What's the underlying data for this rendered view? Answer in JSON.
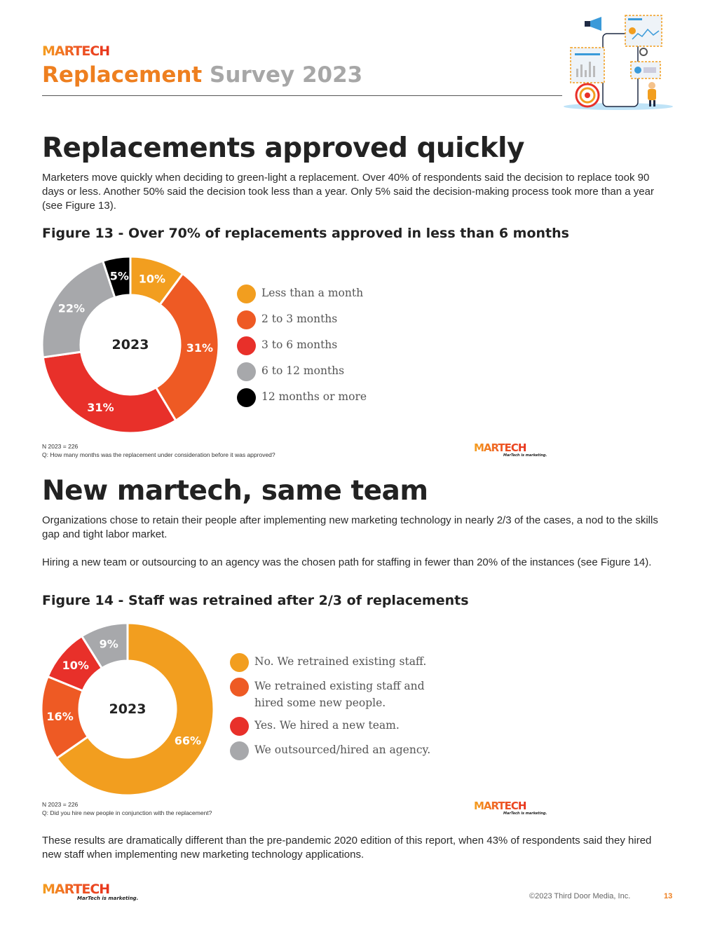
{
  "header": {
    "logo": "MARTECH",
    "title_part1": "Replacement",
    "title_part2": "Survey 2023"
  },
  "section1": {
    "heading": "Replacements approved quickly",
    "paragraph": "Marketers move quickly when deciding to green-light a replacement. Over 40% of respondents said the decision to replace took 90 days or less. Another 50% said the decision took less than a year. Only 5% said the decision-making process took more than a year (see Figure 13).",
    "figure_title": "Figure 13 - Over 70% of replacements approved in less than 6 months",
    "note_n": "N 2023 = 226",
    "note_q": "Q: How many months was the replacement under consideration before it was approved?",
    "watermark_logo": "MARTECH",
    "watermark_tagline": "MarTech is marketing."
  },
  "section2": {
    "heading": "New martech, same team",
    "paragraph1": "Organizations chose to retain their people after implementing new marketing technology in nearly 2/3 of the cases, a nod to the skills gap and tight labor market.",
    "paragraph2": "Hiring a new team or outsourcing to an agency was the chosen path for staffing in fewer than 20% of the instances (see Figure 14).",
    "figure_title": "Figure 14 - Staff was retrained after 2/3 of replacements",
    "note_n": "N 2023 = 226",
    "note_q": "Q: Did you hire new people in conjunction with the replacement?",
    "watermark_logo": "MARTECH",
    "watermark_tagline": "MarTech is marketing.",
    "closing": "These results are dramatically different than the pre-pandemic 2020 edition of this report, when 43% of respondents said they hired new staff when implementing new marketing technology applications."
  },
  "footer": {
    "logo": "MARTECH",
    "tagline": "MarTech is marketing.",
    "copyright": "©2023 Third Door Media, Inc.",
    "page_number": "13"
  },
  "chart_data": [
    {
      "type": "pie",
      "center_label": "2023",
      "categories": [
        "Less than a month",
        "2 to 3 months",
        "3 to 6 months",
        "6 to 12 months",
        "12 months or more"
      ],
      "values": [
        10,
        31,
        31,
        22,
        5
      ],
      "labels": [
        "10%",
        "31%",
        "31%",
        "22%",
        "5%"
      ],
      "colors": [
        "#f29e1f",
        "#ee5a24",
        "#e8302a",
        "#a7a8ab",
        "#000000"
      ],
      "legend": "right"
    },
    {
      "type": "pie",
      "center_label": "2023",
      "categories": [
        "No. We retrained existing staff.",
        "We retrained existing staff and hired some new people.",
        "Yes. We hired a new team.",
        "We outsourced/hired an agency."
      ],
      "values": [
        66,
        16,
        10,
        9
      ],
      "labels": [
        "66%",
        "16%",
        "10%",
        "9%"
      ],
      "colors": [
        "#f29e1f",
        "#ee5a24",
        "#e8302a",
        "#a7a8ab"
      ],
      "legend": "right"
    }
  ]
}
